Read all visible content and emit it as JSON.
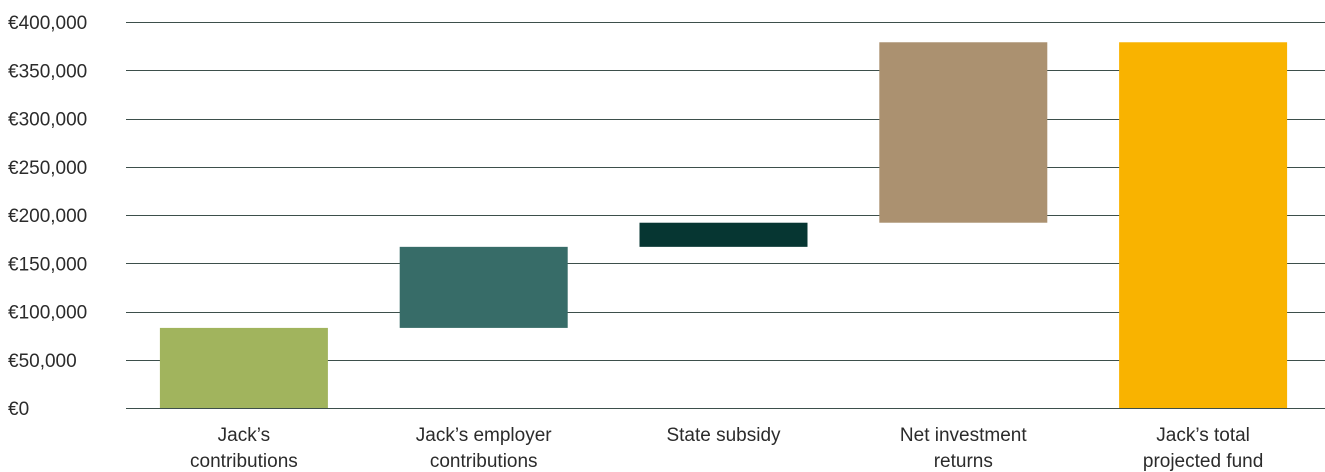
{
  "chart_data": {
    "type": "bar",
    "subtype": "waterfall",
    "title": "",
    "xlabel": "",
    "ylabel": "",
    "ylim": [
      0,
      400000
    ],
    "y_ticks": [
      0,
      50000,
      100000,
      150000,
      200000,
      250000,
      300000,
      350000,
      400000
    ],
    "y_tick_labels": [
      "€0",
      "€50,000",
      "€100,000",
      "€150,000",
      "€200,000",
      "€250,000",
      "€300,000",
      "€350,000",
      "€400,000"
    ],
    "grid": true,
    "legend": "none",
    "categories": [
      [
        "Jack’s",
        "contributions"
      ],
      [
        "Jack’s employer",
        "contributions"
      ],
      [
        "State subsidy"
      ],
      [
        "Net investment",
        "returns"
      ],
      [
        "Jack’s total",
        "projected fund"
      ]
    ],
    "bars": [
      {
        "base": 0,
        "value": 83000,
        "color": "#a1b45d"
      },
      {
        "base": 83000,
        "value": 84000,
        "color": "#376c68"
      },
      {
        "base": 167000,
        "value": 25000,
        "color": "#063632"
      },
      {
        "base": 192000,
        "value": 187000,
        "color": "#ab9170"
      },
      {
        "base": 0,
        "value": 379000,
        "color": "#f9b300"
      }
    ]
  }
}
